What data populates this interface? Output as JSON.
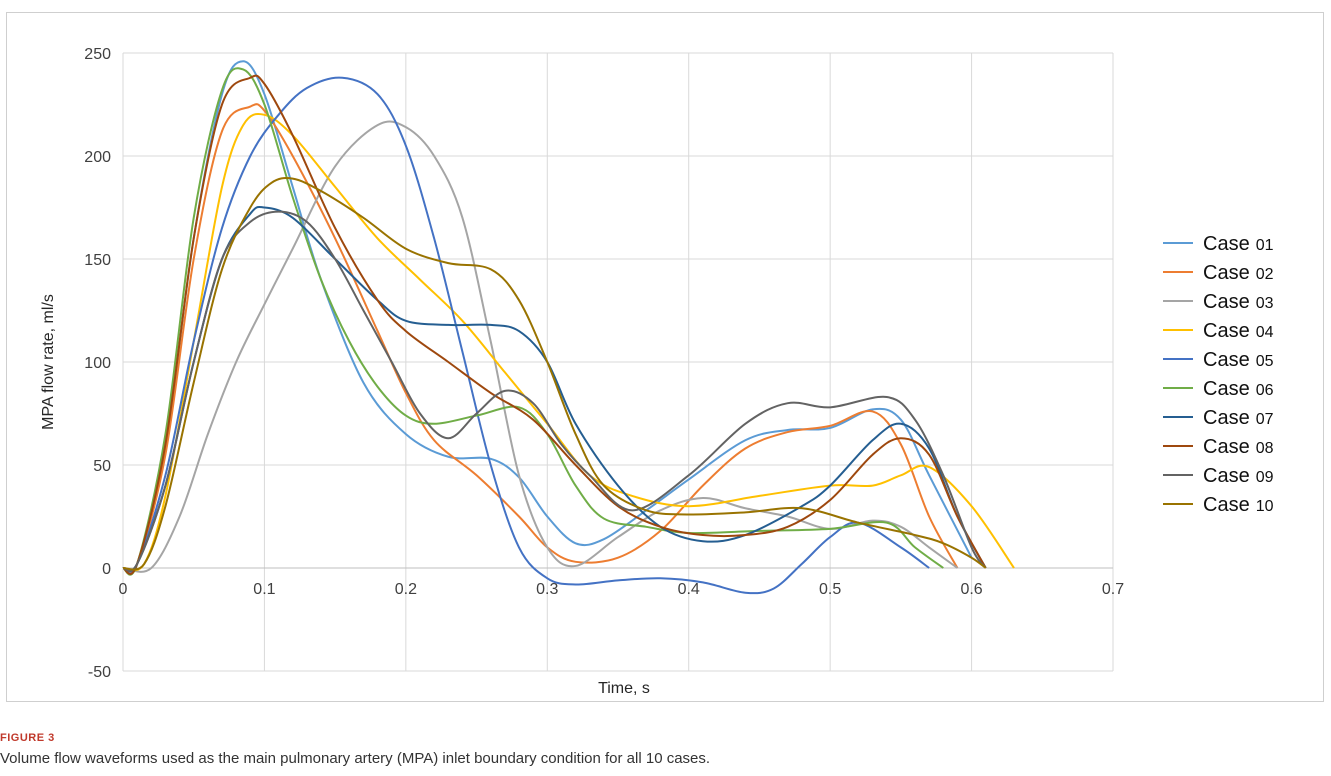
{
  "figure": {
    "label": "FIGURE 3",
    "caption": "Volume flow waveforms used as the main pulmonary artery (MPA) inlet boundary condition for all 10 cases."
  },
  "chart_data": {
    "type": "line",
    "title": "",
    "xlabel": "Time, s",
    "ylabel": "MPA flow rate, ml/s",
    "xlim": [
      0,
      0.7
    ],
    "ylim": [
      -50,
      250
    ],
    "xticks": [
      "0",
      "0.1",
      "0.2",
      "0.3",
      "0.4",
      "0.5",
      "0.6",
      "0.7"
    ],
    "yticks": [
      "250",
      "200",
      "150",
      "100",
      "50",
      "0",
      "-50"
    ],
    "grid": true,
    "legend_position": "right",
    "series": [
      {
        "name": "Case 01",
        "legend_word": "Case",
        "legend_num": "01",
        "color": "#5B9BD5",
        "x": [
          0,
          0.01,
          0.03,
          0.05,
          0.07,
          0.085,
          0.1,
          0.12,
          0.14,
          0.17,
          0.2,
          0.23,
          0.26,
          0.28,
          0.3,
          0.32,
          0.34,
          0.37,
          0.4,
          0.44,
          0.47,
          0.5,
          0.53,
          0.55,
          0.57,
          0.6
        ],
        "y": [
          0,
          2,
          60,
          160,
          230,
          246,
          230,
          185,
          140,
          90,
          65,
          54,
          53,
          44,
          25,
          12,
          14,
          28,
          43,
          62,
          67,
          68,
          77,
          72,
          45,
          5
        ]
      },
      {
        "name": "Case 02",
        "legend_word": "Case",
        "legend_num": "02",
        "color": "#ED7D31",
        "x": [
          0,
          0.01,
          0.03,
          0.05,
          0.07,
          0.09,
          0.1,
          0.12,
          0.15,
          0.18,
          0.2,
          0.22,
          0.25,
          0.28,
          0.3,
          0.32,
          0.35,
          0.38,
          0.41,
          0.44,
          0.47,
          0.5,
          0.53,
          0.55,
          0.57,
          0.59
        ],
        "y": [
          0,
          2,
          55,
          150,
          212,
          224,
          222,
          200,
          160,
          115,
          85,
          62,
          45,
          25,
          10,
          3,
          5,
          18,
          40,
          58,
          66,
          69,
          76,
          60,
          25,
          0
        ]
      },
      {
        "name": "Case 03",
        "legend_word": "Case",
        "legend_num": "03",
        "color": "#A5A5A5",
        "x": [
          0,
          0.02,
          0.04,
          0.06,
          0.08,
          0.1,
          0.12,
          0.15,
          0.18,
          0.2,
          0.22,
          0.24,
          0.26,
          0.28,
          0.3,
          0.32,
          0.35,
          0.38,
          0.41,
          0.44,
          0.47,
          0.5,
          0.53,
          0.55,
          0.57,
          0.59
        ],
        "y": [
          0,
          0,
          25,
          65,
          100,
          128,
          155,
          195,
          215,
          214,
          200,
          170,
          110,
          45,
          10,
          1,
          15,
          28,
          34,
          29,
          25,
          19,
          23,
          20,
          10,
          0
        ]
      },
      {
        "name": "Case 04",
        "legend_word": "Case",
        "legend_num": "04",
        "color": "#FFC000",
        "x": [
          0,
          0.015,
          0.03,
          0.05,
          0.07,
          0.085,
          0.1,
          0.12,
          0.15,
          0.18,
          0.21,
          0.24,
          0.27,
          0.3,
          0.33,
          0.36,
          0.4,
          0.45,
          0.5,
          0.53,
          0.55,
          0.57,
          0.6,
          0.63
        ],
        "y": [
          0,
          2,
          35,
          110,
          185,
          215,
          220,
          210,
          185,
          160,
          140,
          120,
          95,
          70,
          45,
          35,
          30,
          35,
          40,
          40,
          45,
          49,
          30,
          0
        ]
      },
      {
        "name": "Case 05",
        "legend_word": "Case",
        "legend_num": "05",
        "color": "#4472C4",
        "x": [
          0,
          0.01,
          0.03,
          0.05,
          0.07,
          0.09,
          0.11,
          0.13,
          0.155,
          0.18,
          0.2,
          0.22,
          0.24,
          0.26,
          0.28,
          0.3,
          0.32,
          0.35,
          0.38,
          0.41,
          0.44,
          0.46,
          0.48,
          0.5,
          0.52,
          0.55,
          0.57
        ],
        "y": [
          0,
          2,
          45,
          110,
          165,
          200,
          220,
          233,
          238,
          230,
          205,
          160,
          105,
          50,
          10,
          -5,
          -8,
          -6,
          -5,
          -7,
          -12,
          -10,
          2,
          15,
          22,
          10,
          0
        ]
      },
      {
        "name": "Case 06",
        "legend_word": "Case",
        "legend_num": "06",
        "color": "#70AD47",
        "x": [
          0,
          0.01,
          0.03,
          0.05,
          0.07,
          0.085,
          0.1,
          0.12,
          0.14,
          0.16,
          0.18,
          0.2,
          0.22,
          0.25,
          0.28,
          0.3,
          0.32,
          0.34,
          0.37,
          0.4,
          0.45,
          0.5,
          0.54,
          0.56,
          0.58
        ],
        "y": [
          0,
          2,
          65,
          170,
          232,
          242,
          225,
          180,
          140,
          110,
          88,
          74,
          70,
          74,
          78,
          65,
          40,
          24,
          20,
          17,
          18,
          19,
          22,
          10,
          0
        ]
      },
      {
        "name": "Case 07",
        "legend_word": "Case",
        "legend_num": "07",
        "color": "#255E91",
        "x": [
          0,
          0.01,
          0.03,
          0.05,
          0.07,
          0.09,
          0.1,
          0.12,
          0.15,
          0.18,
          0.2,
          0.23,
          0.26,
          0.28,
          0.3,
          0.32,
          0.35,
          0.38,
          0.41,
          0.44,
          0.48,
          0.5,
          0.53,
          0.55,
          0.57,
          0.59,
          0.61
        ],
        "y": [
          0,
          2,
          40,
          100,
          150,
          172,
          175,
          170,
          150,
          130,
          120,
          118,
          118,
          115,
          100,
          70,
          40,
          20,
          13,
          16,
          30,
          40,
          62,
          70,
          58,
          25,
          0
        ]
      },
      {
        "name": "Case 08",
        "legend_word": "Case",
        "legend_num": "08",
        "color": "#9E480E",
        "x": [
          0,
          0.01,
          0.03,
          0.05,
          0.07,
          0.09,
          0.1,
          0.12,
          0.15,
          0.18,
          0.2,
          0.23,
          0.26,
          0.29,
          0.32,
          0.35,
          0.38,
          0.41,
          0.44,
          0.47,
          0.5,
          0.53,
          0.55,
          0.57,
          0.59,
          0.61
        ],
        "y": [
          0,
          2,
          60,
          160,
          225,
          238,
          235,
          210,
          165,
          130,
          115,
          100,
          85,
          72,
          50,
          30,
          20,
          16,
          16,
          20,
          33,
          55,
          63,
          55,
          25,
          0
        ]
      },
      {
        "name": "Case 09",
        "legend_word": "Case",
        "legend_num": "09",
        "color": "#636363",
        "x": [
          0,
          0.01,
          0.03,
          0.05,
          0.07,
          0.09,
          0.11,
          0.13,
          0.15,
          0.17,
          0.19,
          0.21,
          0.23,
          0.25,
          0.27,
          0.29,
          0.31,
          0.33,
          0.36,
          0.4,
          0.44,
          0.47,
          0.5,
          0.54,
          0.56,
          0.58,
          0.6,
          0.61
        ],
        "y": [
          0,
          2,
          40,
          100,
          150,
          168,
          173,
          168,
          150,
          125,
          100,
          75,
          63,
          75,
          86,
          80,
          60,
          45,
          28,
          45,
          70,
          80,
          78,
          83,
          72,
          45,
          10,
          0
        ]
      },
      {
        "name": "Case 10",
        "legend_word": "Case",
        "legend_num": "10",
        "color": "#997300",
        "x": [
          0,
          0.015,
          0.03,
          0.05,
          0.07,
          0.09,
          0.105,
          0.12,
          0.14,
          0.17,
          0.2,
          0.23,
          0.26,
          0.28,
          0.3,
          0.32,
          0.34,
          0.37,
          0.4,
          0.44,
          0.48,
          0.52,
          0.56,
          0.58,
          0.6,
          0.61
        ],
        "y": [
          0,
          2,
          30,
          90,
          145,
          175,
          187,
          189,
          183,
          170,
          155,
          148,
          145,
          130,
          100,
          65,
          40,
          28,
          26,
          27,
          29,
          22,
          16,
          12,
          5,
          0
        ]
      }
    ]
  }
}
